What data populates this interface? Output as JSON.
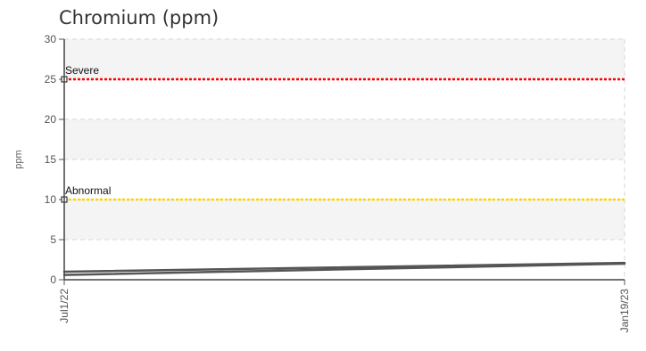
{
  "chart_data": {
    "type": "line",
    "title": "Chromium (ppm)",
    "ylabel": "ppm",
    "xlabel": "",
    "ylim": [
      0,
      30
    ],
    "yticks": [
      0,
      5,
      10,
      15,
      20,
      25,
      30
    ],
    "x_categories": [
      "Jul1/22",
      "Jan19/23"
    ],
    "grid": true,
    "series": [
      {
        "values": [
          1,
          2.1
        ],
        "color": "#555555"
      },
      {
        "values": [
          0.6,
          2.0
        ],
        "color": "#555555"
      }
    ],
    "thresholds": [
      {
        "label": "Severe",
        "value": 25,
        "color": "#ff0000"
      },
      {
        "label": "Abnormal",
        "value": 10,
        "color": "#ffd400"
      }
    ]
  }
}
